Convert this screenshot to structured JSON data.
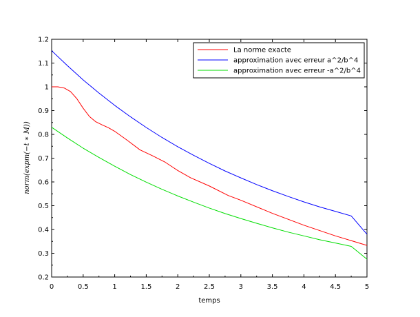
{
  "chart_data": {
    "type": "line",
    "title": "",
    "xlabel": "temps",
    "ylabel": "norm(expm(−t ∗ M))",
    "xlim": [
      0,
      5
    ],
    "ylim": [
      0.2,
      1.2
    ],
    "xticks": [
      "0",
      "0.5",
      "1",
      "1.5",
      "2",
      "2.5",
      "3",
      "3.5",
      "4",
      "4.5",
      "5"
    ],
    "yticks": [
      "0.2",
      "0.3",
      "0.4",
      "0.5",
      "0.6",
      "0.7",
      "0.8",
      "0.9",
      "1",
      "1.1",
      "1.2"
    ],
    "grid": false,
    "legend_position": "top-right",
    "series": [
      {
        "name": "La norme exacte",
        "color": "#ff0000",
        "x": [
          0,
          0.1,
          0.2,
          0.3,
          0.4,
          0.5,
          0.6,
          0.7,
          0.8,
          0.9,
          1.0,
          1.2,
          1.4,
          1.6,
          1.8,
          2.0,
          2.2,
          2.5,
          2.8,
          3.0,
          3.5,
          4.0,
          4.5,
          5.0
        ],
        "y": [
          1.0,
          1.0,
          0.995,
          0.98,
          0.95,
          0.91,
          0.875,
          0.853,
          0.84,
          0.828,
          0.813,
          0.775,
          0.735,
          0.71,
          0.683,
          0.648,
          0.618,
          0.583,
          0.543,
          0.523,
          0.468,
          0.418,
          0.373,
          0.333
        ]
      },
      {
        "name": "approximation avec erreur a^2/b^4",
        "color": "#0000ff",
        "x": [
          0,
          0.25,
          0.5,
          0.75,
          1.0,
          1.25,
          1.5,
          1.75,
          2.0,
          2.25,
          2.5,
          2.75,
          3.0,
          3.25,
          3.5,
          3.75,
          4.0,
          4.25,
          4.5,
          4.75,
          5.0
        ],
        "y": [
          1.152,
          1.089,
          1.029,
          0.974,
          0.922,
          0.874,
          0.829,
          0.787,
          0.748,
          0.712,
          0.678,
          0.646,
          0.617,
          0.589,
          0.563,
          0.539,
          0.516,
          0.495,
          0.476,
          0.457,
          0.38
        ]
      },
      {
        "name": "approximation avec erreur -a^2/b^4",
        "color": "#00dd00",
        "x": [
          0,
          0.25,
          0.5,
          0.75,
          1.0,
          1.25,
          1.5,
          1.75,
          2.0,
          2.25,
          2.5,
          2.75,
          3.0,
          3.25,
          3.5,
          3.75,
          4.0,
          4.25,
          4.5,
          4.75,
          5.0
        ],
        "y": [
          0.83,
          0.785,
          0.742,
          0.703,
          0.666,
          0.631,
          0.599,
          0.569,
          0.541,
          0.515,
          0.49,
          0.467,
          0.446,
          0.426,
          0.407,
          0.389,
          0.373,
          0.357,
          0.343,
          0.329,
          0.275
        ]
      }
    ]
  }
}
